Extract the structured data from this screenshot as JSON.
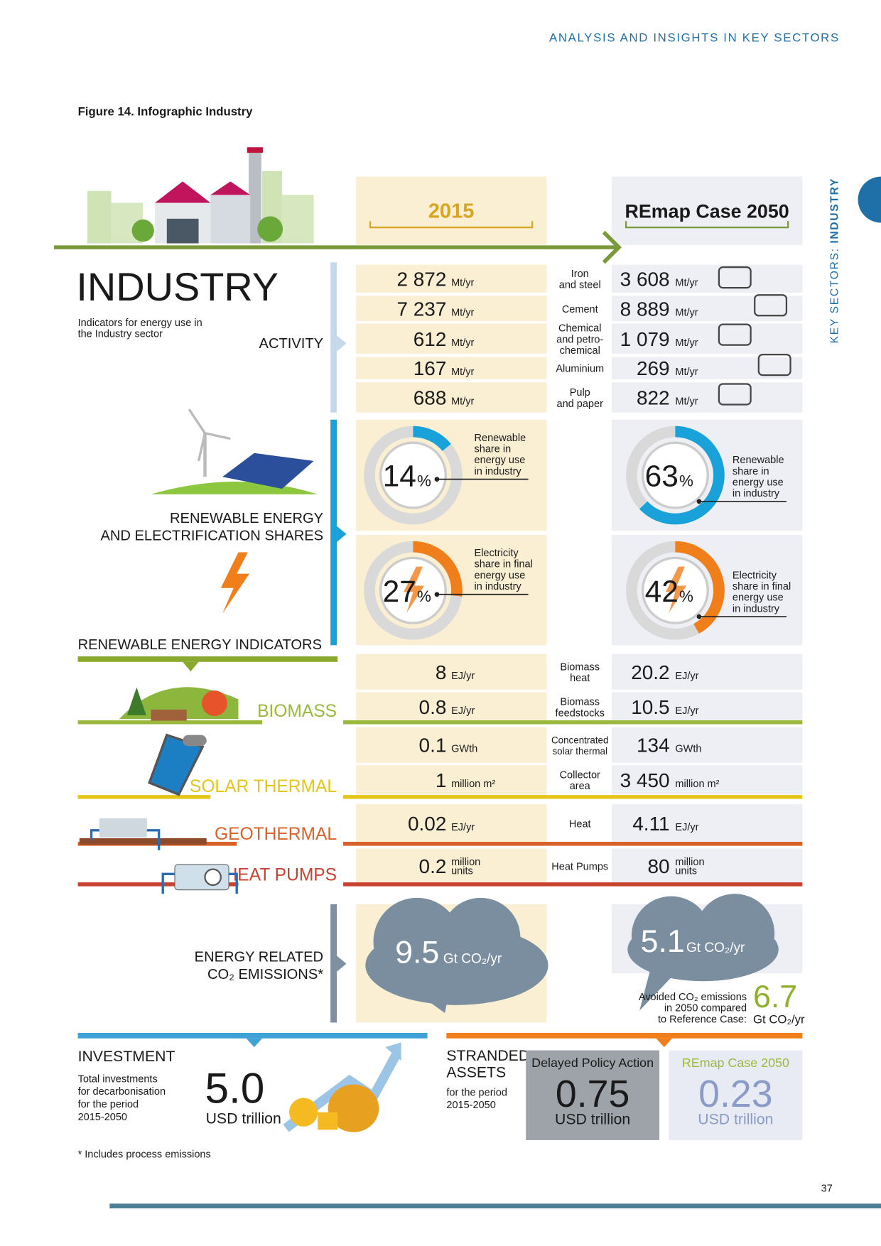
{
  "header": "ANALYSIS AND INSIGHTS IN KEY SECTORS",
  "figure_title": "Figure 14. Infographic Industry",
  "side_tab": {
    "prefix": "KEY SECTORS:",
    "sector": "INDUSTRY"
  },
  "columns": [
    "2015",
    "REmap Case 2050"
  ],
  "sector": {
    "title": "INDUSTRY",
    "description": [
      "Indicators for energy use in",
      "the Industry sector"
    ]
  },
  "activity": {
    "label": "ACTIVITY",
    "rows": [
      {
        "label": [
          "Iron",
          "and steel"
        ],
        "v2015": "2 872",
        "v2050": "3 608",
        "unit": "Mt/yr"
      },
      {
        "label": [
          "Cement"
        ],
        "v2015": "7 237",
        "v2050": "8 889",
        "unit": "Mt/yr"
      },
      {
        "label": [
          "Chemical",
          "and petro-",
          "chemical"
        ],
        "v2015": "612",
        "v2050": "1 079",
        "unit": "Mt/yr"
      },
      {
        "label": [
          "Aluminium"
        ],
        "v2015": "167",
        "v2050": "269",
        "unit": "Mt/yr"
      },
      {
        "label": [
          "Pulp",
          "and paper"
        ],
        "v2015": "688",
        "v2050": "822",
        "unit": "Mt/yr"
      }
    ]
  },
  "shares": {
    "label": [
      "RENEWABLE ENERGY",
      "AND ELECTRIFICATION SHARES"
    ],
    "unit": "%",
    "items": [
      {
        "description": [
          "Renewable",
          "share in",
          "energy use",
          "in industry"
        ],
        "v2015": 14,
        "v2050": 63,
        "color": "#19a1d9"
      },
      {
        "description": [
          "Electricity",
          "share in final",
          "energy use",
          "in industry"
        ],
        "v2015": 27,
        "v2050": 42,
        "color": "#f07e1b"
      }
    ]
  },
  "re_indicators": {
    "title": "RENEWABLE ENERGY INDICATORS",
    "groups": [
      {
        "name": "BIOMASS",
        "color": "#9ab83c",
        "rows": [
          {
            "label": [
              "Biomass",
              "heat"
            ],
            "v2015": "8",
            "v2050": "20.2",
            "unit": "EJ/yr"
          },
          {
            "label": [
              "Biomass",
              "feedstocks"
            ],
            "v2015": "0.8",
            "v2050": "10.5",
            "unit": "EJ/yr"
          }
        ]
      },
      {
        "name": "SOLAR THERMAL",
        "color": "#e5c51a",
        "rows": [
          {
            "label": [
              "Concentrated",
              "solar thermal"
            ],
            "v2015": "0.1",
            "v2050": "134",
            "unit": "GWth"
          },
          {
            "label": [
              "Collector",
              "area"
            ],
            "v2015": "1",
            "v2050": "3 450",
            "unit": "million m²"
          }
        ]
      },
      {
        "name": "GEOTHERMAL",
        "color": "#d9622b",
        "rows": [
          {
            "label": [
              "Heat"
            ],
            "v2015": "0.02",
            "v2050": "4.11",
            "unit": "EJ/yr"
          }
        ]
      },
      {
        "name": "HEAT PUMPS",
        "color": "#c9412f",
        "rows": [
          {
            "label": [
              "Heat Pumps"
            ],
            "v2015": "0.2",
            "v2050": "80",
            "unit": [
              "million",
              "units"
            ]
          }
        ]
      }
    ]
  },
  "emissions": {
    "label": [
      "ENERGY RELATED",
      "CO₂ EMISSIONS*"
    ],
    "v2015": "9.5",
    "v2050": "5.1",
    "unit": "Gt CO₂/yr",
    "avoided": {
      "text": [
        "Avoided CO₂ emissions",
        "in 2050 compared",
        "to Reference Case:"
      ],
      "value": "6.7",
      "unit": "Gt CO₂/yr"
    }
  },
  "investment": {
    "title": "INVESTMENT",
    "description": [
      "Total investments",
      "for decarbonisation",
      "for the period",
      "2015-2050"
    ],
    "value": "5.0",
    "unit": "USD trillion"
  },
  "stranded": {
    "title": [
      "STRANDED",
      "ASSETS"
    ],
    "description": [
      "for the period",
      "2015-2050"
    ],
    "scenarios": [
      {
        "name": "Delayed Policy Action",
        "value": "0.75",
        "unit": "USD trillion"
      },
      {
        "name": "REmap Case 2050",
        "value": "0.23",
        "unit": "USD trillion"
      }
    ]
  },
  "footnote": "* Includes process emissions",
  "page_number": "37"
}
